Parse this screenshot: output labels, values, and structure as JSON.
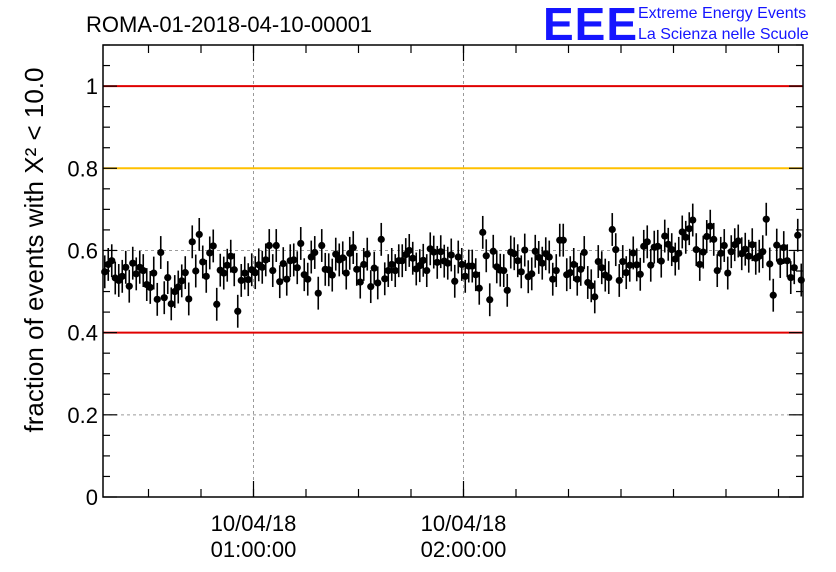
{
  "header": {
    "title": "ROMA-01-2018-04-10-00001",
    "logo_mark": "EEE",
    "logo_line1": "Extreme Energy Events",
    "logo_line2": "La Scienza nelle Scuole",
    "logo_color": "#1515ff"
  },
  "chart_data": {
    "type": "scatter",
    "title": "ROMA-01-2018-04-10-00001",
    "ylabel": "fraction of events with X² < 10.0",
    "xlabel": "",
    "x_unit": "minutes since 10/04/18 00:17",
    "ylim": [
      0,
      1.1
    ],
    "y_ticks": [
      {
        "value": 0,
        "label": "0"
      },
      {
        "value": 0.2,
        "label": "0.2"
      },
      {
        "value": 0.4,
        "label": "0.4"
      },
      {
        "value": 0.6,
        "label": "0.6"
      },
      {
        "value": 0.8,
        "label": "0.8"
      },
      {
        "value": 1,
        "label": "1"
      }
    ],
    "x_ticks": [
      {
        "value": 43,
        "date": "10/04/18",
        "time": "01:00:00"
      },
      {
        "value": 103,
        "date": "10/04/18",
        "time": "02:00:00"
      }
    ],
    "grid": true,
    "reference_lines": [
      {
        "y": 1.0,
        "color": "#e00000"
      },
      {
        "y": 0.8,
        "color": "#ffc000"
      },
      {
        "y": 0.4,
        "color": "#e00000"
      }
    ],
    "marker_color": "#000000",
    "error_bar": 0.04,
    "values": [
      0.548,
      0.566,
      0.575,
      0.533,
      0.527,
      0.537,
      0.559,
      0.513,
      0.569,
      0.543,
      0.559,
      0.551,
      0.517,
      0.51,
      0.545,
      0.481,
      0.595,
      0.485,
      0.534,
      0.47,
      0.5,
      0.511,
      0.526,
      0.546,
      0.482,
      0.621,
      0.55,
      0.639,
      0.572,
      0.537,
      0.594,
      0.611,
      0.469,
      0.552,
      0.545,
      0.564,
      0.586,
      0.553,
      0.452,
      0.527,
      0.545,
      0.529,
      0.553,
      0.546,
      0.565,
      0.559,
      0.577,
      0.612,
      0.551,
      0.612,
      0.524,
      0.568,
      0.53,
      0.575,
      0.577,
      0.558,
      0.617,
      0.541,
      0.53,
      0.584,
      0.595,
      0.496,
      0.612,
      0.554,
      0.553,
      0.54,
      0.591,
      0.577,
      0.582,
      0.545,
      0.593,
      0.607,
      0.554,
      0.523,
      0.566,
      0.591,
      0.512,
      0.557,
      0.521,
      0.627,
      0.531,
      0.551,
      0.566,
      0.551,
      0.575,
      0.575,
      0.59,
      0.6,
      0.581,
      0.555,
      0.563,
      0.576,
      0.551,
      0.604,
      0.596,
      0.571,
      0.597,
      0.574,
      0.569,
      0.589,
      0.525,
      0.584,
      0.566,
      0.537,
      0.562,
      0.562,
      0.541,
      0.508,
      0.644,
      0.587,
      0.48,
      0.598,
      0.56,
      0.552,
      0.551,
      0.503,
      0.596,
      0.592,
      0.575,
      0.548,
      0.601,
      0.536,
      0.543,
      0.598,
      0.583,
      0.569,
      0.592,
      0.584,
      0.53,
      0.551,
      0.625,
      0.625,
      0.541,
      0.546,
      0.566,
      0.53,
      0.554,
      0.595,
      0.522,
      0.514,
      0.487,
      0.573,
      0.558,
      0.54,
      0.534,
      0.651,
      0.602,
      0.527,
      0.573,
      0.546,
      0.564,
      0.594,
      0.565,
      0.542,
      0.61,
      0.621,
      0.564,
      0.608,
      0.61,
      0.574,
      0.635,
      0.615,
      0.602,
      0.579,
      0.593,
      0.645,
      0.632,
      0.653,
      0.674,
      0.602,
      0.566,
      0.596,
      0.634,
      0.659,
      0.627,
      0.551,
      0.593,
      0.612,
      0.545,
      0.597,
      0.614,
      0.623,
      0.592,
      0.603,
      0.586,
      0.614,
      0.581,
      0.586,
      0.597,
      0.676,
      0.567,
      0.491,
      0.613,
      0.573,
      0.607,
      0.575,
      0.534,
      0.558,
      0.637,
      0.528
    ]
  }
}
